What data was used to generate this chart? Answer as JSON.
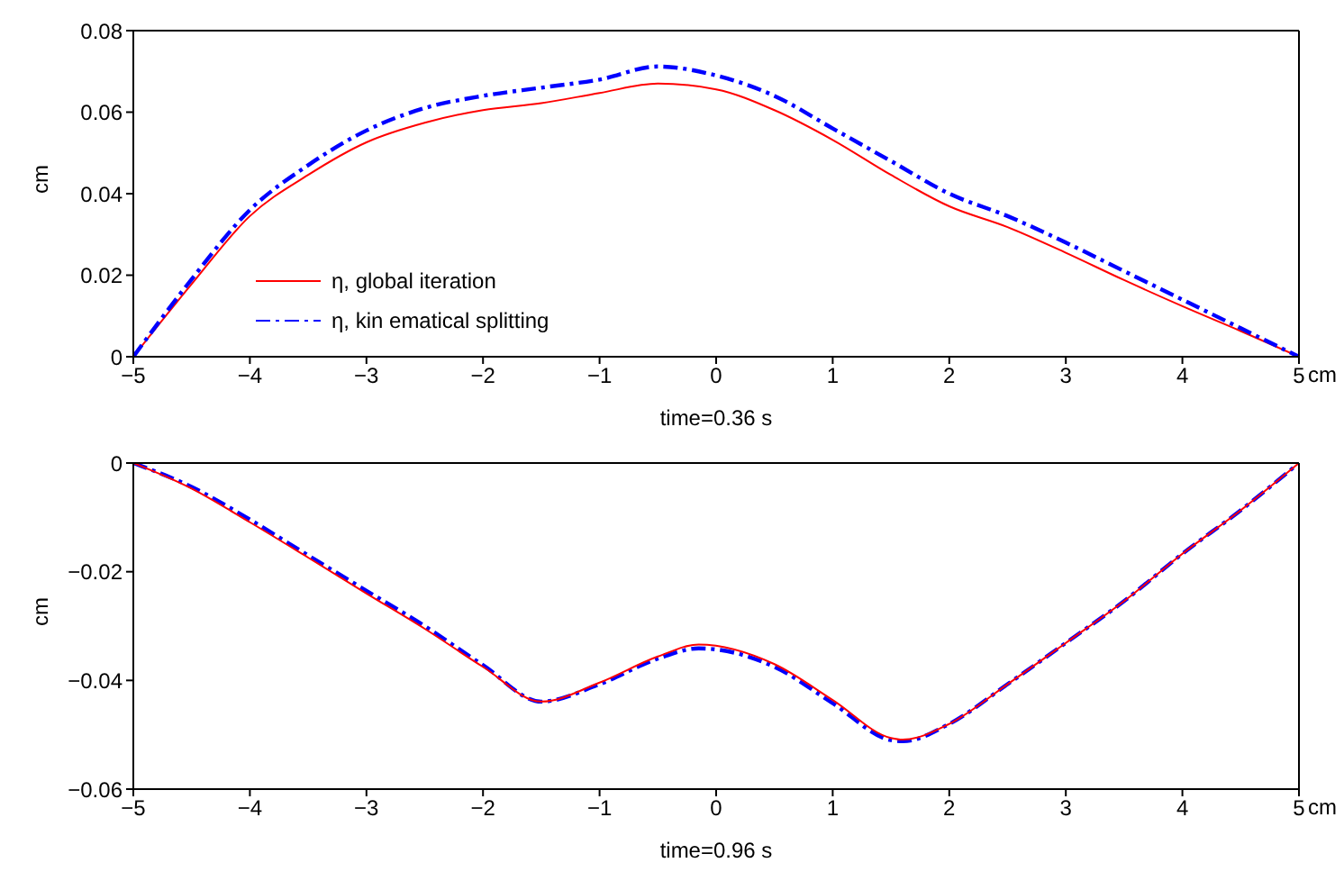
{
  "chart_data": [
    {
      "type": "line",
      "xlabel": "time=0.36 s",
      "ylabel": "cm",
      "annotations": [
        "cm"
      ],
      "x": [
        -5,
        -4.5,
        -4,
        -3.5,
        -3,
        -2.5,
        -2,
        -1.5,
        -1,
        -0.5,
        0,
        0.5,
        1,
        1.5,
        2,
        2.5,
        3,
        3.5,
        4,
        4.5,
        5
      ],
      "xlim": [
        -5,
        5
      ],
      "xticks": [
        -5,
        -4,
        -3,
        -2,
        -1,
        0,
        1,
        2,
        3,
        4,
        5
      ],
      "ylim": [
        0,
        0.08
      ],
      "yticks": [
        0,
        0.02,
        0.04,
        0.06,
        0.08
      ],
      "grid": false,
      "legend": "bottom left",
      "marker": "none",
      "series": [
        {
          "name": "η, global iteration",
          "color": "#ff0000",
          "line_style": "solid",
          "values": [
            0,
            0.0178,
            0.0345,
            0.0446,
            0.0526,
            0.0574,
            0.0605,
            0.0622,
            0.0647,
            0.067,
            0.0656,
            0.0605,
            0.0532,
            0.0446,
            0.0369,
            0.0318,
            0.0255,
            0.0188,
            0.0124,
            0.0063,
            0
          ]
        },
        {
          "name": "η, kin ematical splitting",
          "color": "#0000ff",
          "line_style": "dashed",
          "values": [
            0,
            0.019,
            0.036,
            0.047,
            0.0555,
            0.061,
            0.064,
            0.066,
            0.068,
            0.0712,
            0.069,
            0.064,
            0.056,
            0.048,
            0.04,
            0.0345,
            0.028,
            0.021,
            0.014,
            0.007,
            0
          ]
        }
      ]
    },
    {
      "type": "line",
      "xlabel": "time=0.96 s",
      "ylabel": "cm",
      "annotations": [
        "cm"
      ],
      "x": [
        -5,
        -4.5,
        -4,
        -3.5,
        -3,
        -2.5,
        -2,
        -1.5,
        -1,
        -0.5,
        -0.15,
        0.5,
        1,
        1.5,
        1.6,
        2,
        2.5,
        3,
        3.5,
        4,
        4.5,
        5
      ],
      "xlim": [
        -5,
        5
      ],
      "xticks": [
        -5,
        -4,
        -3,
        -2,
        -1,
        0,
        1,
        2,
        3,
        4,
        5
      ],
      "ylim": [
        -0.06,
        0
      ],
      "yticks": [
        -0.06,
        -0.04,
        -0.02,
        0
      ],
      "grid": false,
      "legend": false,
      "marker": "none",
      "series": [
        {
          "color": "#0000ff",
          "line_style": "dashed",
          "values": [
            0,
            -0.0044,
            -0.0104,
            -0.017,
            -0.0235,
            -0.03,
            -0.0372,
            -0.0439,
            -0.0407,
            -0.036,
            -0.0341,
            -0.0375,
            -0.0442,
            -0.051,
            -0.0512,
            -0.048,
            -0.0407,
            -0.0331,
            -0.0254,
            -0.0167,
            -0.0087,
            0
          ]
        },
        {
          "color": "#ff0000",
          "line_style": "solid",
          "values": [
            0,
            -0.0047,
            -0.0109,
            -0.0174,
            -0.024,
            -0.0305,
            -0.0375,
            -0.0439,
            -0.0404,
            -0.0356,
            -0.0334,
            -0.037,
            -0.0436,
            -0.0506,
            -0.0509,
            -0.048,
            -0.0407,
            -0.0331,
            -0.0254,
            -0.0167,
            -0.0087,
            0
          ]
        }
      ]
    }
  ]
}
